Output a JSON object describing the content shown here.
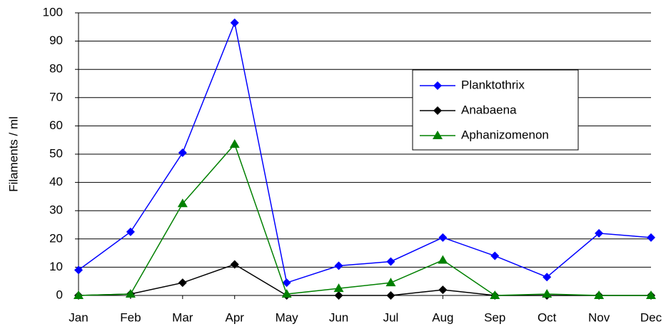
{
  "chart_data": {
    "type": "line",
    "y_label": "Filaments / ml",
    "categories": [
      "Jan",
      "Feb",
      "Mar",
      "Apr",
      "May",
      "Jun",
      "Jul",
      "Aug",
      "Sep",
      "Oct",
      "Nov",
      "Dec"
    ],
    "series": [
      {
        "name": "Planktothrix",
        "color": "#0000ff",
        "marker": "diamond",
        "values": [
          9,
          22.5,
          50.5,
          96.5,
          4.5,
          10.5,
          12,
          20.5,
          14,
          6.5,
          22,
          20.5
        ]
      },
      {
        "name": "Anabaena",
        "color": "#000000",
        "marker": "diamond",
        "values": [
          0,
          0.5,
          4.5,
          11,
          0,
          0,
          0,
          2,
          0,
          0,
          0,
          0
        ]
      },
      {
        "name": "Aphanizomenon",
        "color": "#008000",
        "marker": "triangle",
        "values": [
          0,
          0.5,
          32.5,
          53.5,
          0.5,
          2.5,
          4.5,
          12.5,
          0,
          0.5,
          0,
          0
        ]
      }
    ],
    "ylim": [
      0,
      100
    ],
    "yticks": [
      0,
      10,
      20,
      30,
      40,
      50,
      60,
      70,
      80,
      90,
      100
    ],
    "grid": true,
    "legend": "upper-right"
  }
}
